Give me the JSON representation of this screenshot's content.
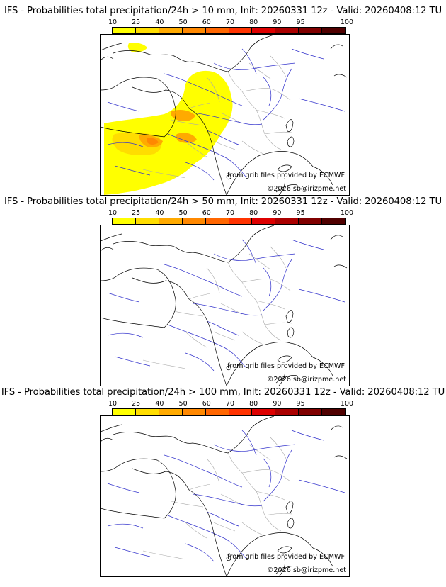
{
  "legend": {
    "ticks": [
      "10",
      "25",
      "40",
      "50",
      "60",
      "70",
      "80",
      "90",
      "95",
      "100"
    ],
    "colors": [
      "#ffff00",
      "#ffdd00",
      "#ffaa00",
      "#ff8800",
      "#ff6600",
      "#ff3300",
      "#dd0000",
      "#aa0000",
      "#800000",
      "#500000"
    ]
  },
  "credits": {
    "source": "from grib files provided by ECMWF",
    "copyright": "©2026 sb@irizpme.net"
  },
  "colors": {
    "rivers": "#3333cc",
    "coast": "#000000",
    "borders": "#aaaaaa"
  },
  "panels": [
    {
      "title": "IFS - Probabilities total precipitation/24h > 10 mm, Init: 20260331 12z - Valid: 20260408:12 TU",
      "has_precip": true
    },
    {
      "title": "IFS - Probabilities total precipitation/24h > 50 mm, Init: 20260331 12z - Valid: 20260408:12 TU",
      "has_precip": false
    },
    {
      "title": "IFS - Probabilities total precipitation/24h > 100 mm, Init: 20260331 12z - Valid: 20260408:12 TU",
      "has_precip": false
    }
  ]
}
